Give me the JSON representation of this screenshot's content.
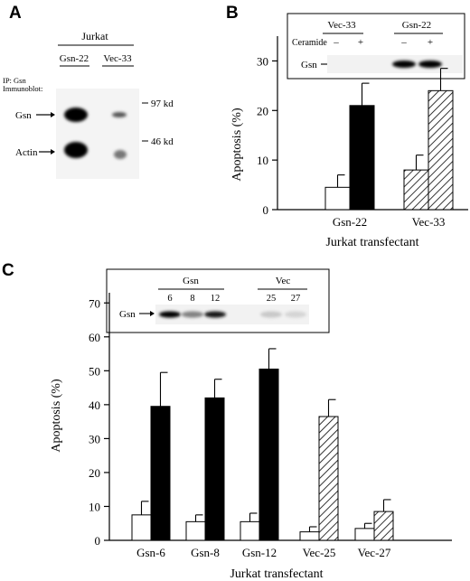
{
  "panels": {
    "a": {
      "letter": "A",
      "cell_line": "Jurkat",
      "lanes": [
        "Gsn-22",
        "Vec-33"
      ],
      "ip_label": "IP: Gsn",
      "blot_label": "Immunoblot:",
      "band_labels": [
        "Gsn",
        "Actin"
      ],
      "markers": [
        "97 kd",
        "46 kd"
      ],
      "band_intensity": {
        "Gsn-22": [
          1.0,
          1.0
        ],
        "Vec-33": [
          0.35,
          0.3
        ]
      }
    },
    "b": {
      "letter": "B",
      "inset": {
        "groups": [
          "Vec-33",
          "Gsn-22"
        ],
        "treatment_label": "Ceramide",
        "signs": [
          "–",
          "+",
          "–",
          "+"
        ],
        "band_label": "Gsn",
        "band_intensity": [
          0.0,
          0.0,
          1.0,
          1.0
        ]
      }
    },
    "c": {
      "letter": "C",
      "inset": {
        "groups": [
          "Gsn",
          "Vec"
        ],
        "lane_numbers": [
          "6",
          "8",
          "12",
          "25",
          "27"
        ],
        "band_label": "Gsn",
        "band_intensity": [
          1.0,
          0.45,
          0.9,
          0.15,
          0.1
        ]
      }
    }
  },
  "chart_data": [
    {
      "panel": "B",
      "type": "bar",
      "categories": [
        "Gsn-22",
        "Vec-33"
      ],
      "series": [
        {
          "values": [
            4.5,
            8.0
          ],
          "errors": [
            2.5,
            3.0
          ]
        },
        {
          "values": [
            21.0,
            24.0
          ],
          "errors": [
            4.5,
            4.5
          ]
        }
      ],
      "fills": [
        "white",
        "black",
        "white-hatch",
        "hatch"
      ],
      "xlabel": "Jurkat transfectant",
      "ylabel": "Apoptosis (%)",
      "ylim": [
        0,
        35
      ],
      "yticks": [
        0,
        10,
        20,
        30
      ]
    },
    {
      "panel": "C",
      "type": "bar",
      "categories": [
        "Gsn-6",
        "Gsn-8",
        "Gsn-12",
        "Vec-25",
        "Vec-27"
      ],
      "series": [
        {
          "values": [
            7.5,
            5.5,
            5.5,
            2.5,
            3.5
          ],
          "errors": [
            4.0,
            2.0,
            2.5,
            1.5,
            1.5
          ]
        },
        {
          "values": [
            39.5,
            42.0,
            50.5,
            36.5,
            8.5
          ],
          "errors": [
            10.0,
            5.5,
            6.0,
            5.0,
            3.5
          ]
        }
      ],
      "hatched_categories": [
        "Vec-25",
        "Vec-27"
      ],
      "xlabel": "Jurkat transfectant",
      "ylabel": "Apoptosis (%)",
      "ylim": [
        0,
        73
      ],
      "yticks": [
        0,
        10,
        20,
        30,
        40,
        50,
        60,
        70
      ]
    }
  ]
}
